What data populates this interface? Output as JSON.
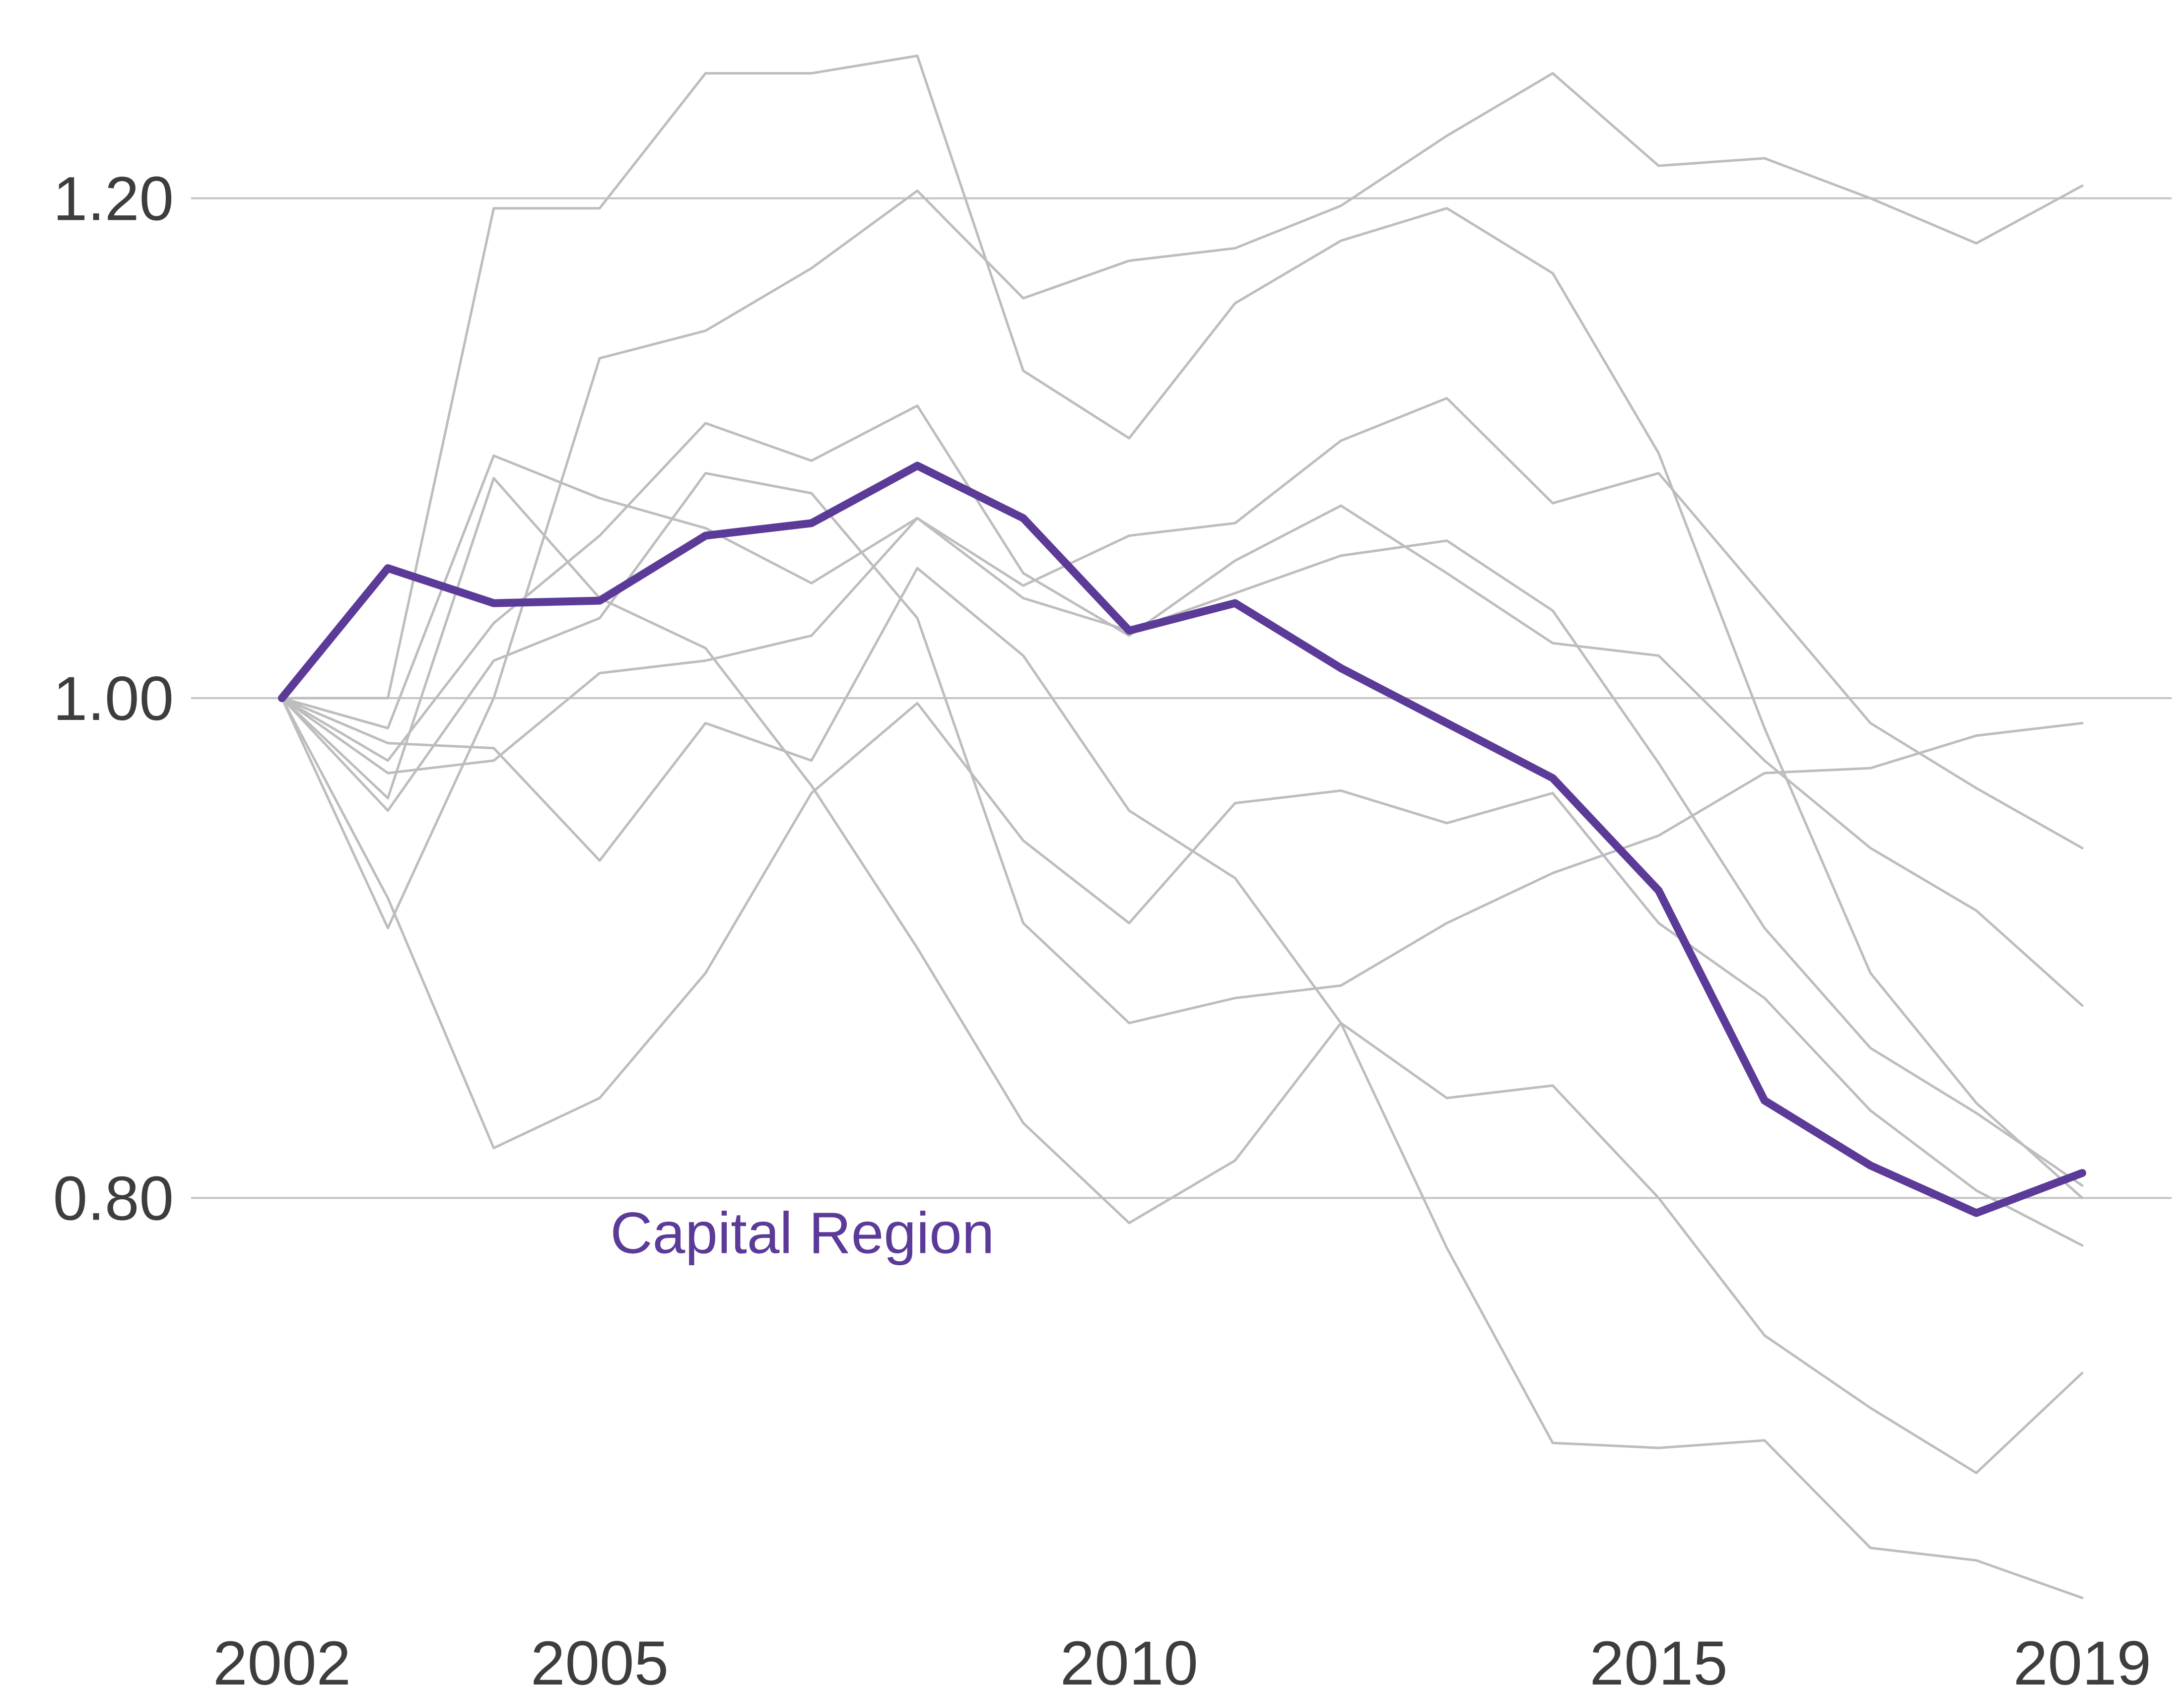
{
  "chart_data": {
    "type": "line",
    "title": "",
    "xlabel": "",
    "ylabel": "",
    "x": [
      2002,
      2003,
      2004,
      2005,
      2006,
      2007,
      2008,
      2009,
      2010,
      2011,
      2012,
      2013,
      2014,
      2015,
      2016,
      2017,
      2018,
      2019
    ],
    "xticks": [
      2002,
      2005,
      2010,
      2015,
      2019
    ],
    "xtick_labels": [
      "2002",
      "2005",
      "2010",
      "2015",
      "2019"
    ],
    "yticks": [
      0.8,
      1.0,
      1.2
    ],
    "ytick_labels": [
      "0.80",
      "1.00",
      "1.20"
    ],
    "xlim": [
      2002,
      2019
    ],
    "ylim": [
      0.65,
      1.27
    ],
    "grid": "horizontal",
    "colors": {
      "highlight": "#5b3a98",
      "context": "#bdbdbd",
      "grid": "#c4c4c4",
      "text": "#3d3d3d"
    },
    "highlight": {
      "label": "Capital Region",
      "values": [
        1.0,
        1.052,
        1.038,
        1.039,
        1.065,
        1.07,
        1.093,
        1.072,
        1.027,
        1.038,
        1.012,
        0.99,
        0.968,
        0.923,
        0.839,
        0.813,
        0.794,
        0.81
      ]
    },
    "series": [
      {
        "values": [
          1.0,
          1.0,
          1.196,
          1.196,
          1.25,
          1.25,
          1.257,
          1.131,
          1.104,
          1.158,
          1.183,
          1.196,
          1.17,
          1.098,
          0.988,
          0.89,
          0.838,
          0.8
        ]
      },
      {
        "values": [
          1.0,
          0.908,
          1.0,
          1.136,
          1.147,
          1.172,
          1.203,
          1.16,
          1.175,
          1.18,
          1.197,
          1.225,
          1.25,
          1.213,
          1.216,
          1.2,
          1.182,
          1.205
        ]
      },
      {
        "values": [
          1.0,
          0.988,
          1.097,
          1.08,
          1.068,
          1.046,
          1.072,
          1.04,
          1.027,
          1.042,
          1.057,
          1.063,
          1.035,
          0.974,
          0.908,
          0.86,
          0.834,
          0.805
        ]
      },
      {
        "values": [
          1.0,
          0.96,
          1.088,
          1.04,
          1.02,
          0.965,
          0.9,
          0.83,
          0.79,
          0.815,
          0.87,
          0.78,
          0.702,
          0.7,
          0.703,
          0.66,
          0.655,
          0.64
        ]
      },
      {
        "values": [
          1.0,
          0.975,
          1.03,
          1.065,
          1.11,
          1.095,
          1.117,
          1.05,
          1.025,
          1.055,
          1.077,
          1.05,
          1.022,
          1.017,
          0.975,
          0.94,
          0.915,
          0.877
        ]
      },
      {
        "values": [
          1.0,
          0.955,
          1.015,
          1.032,
          1.09,
          1.082,
          1.032,
          0.91,
          0.87,
          0.88,
          0.885,
          0.91,
          0.93,
          0.945,
          0.97,
          0.972,
          0.985,
          0.99
        ]
      },
      {
        "values": [
          1.0,
          0.92,
          0.82,
          0.84,
          0.89,
          0.962,
          0.998,
          0.943,
          0.91,
          0.958,
          0.963,
          0.95,
          0.962,
          0.91,
          0.88,
          0.835,
          0.803,
          0.781
        ]
      },
      {
        "values": [
          1.0,
          0.982,
          0.98,
          0.935,
          0.99,
          0.975,
          1.052,
          1.017,
          0.955,
          0.928,
          0.87,
          0.84,
          0.845,
          0.8,
          0.745,
          0.716,
          0.69,
          0.73
        ]
      },
      {
        "values": [
          1.0,
          0.97,
          0.975,
          1.01,
          1.015,
          1.025,
          1.072,
          1.045,
          1.065,
          1.07,
          1.103,
          1.12,
          1.078,
          1.09,
          1.04,
          0.99,
          0.964,
          0.94
        ]
      }
    ]
  }
}
